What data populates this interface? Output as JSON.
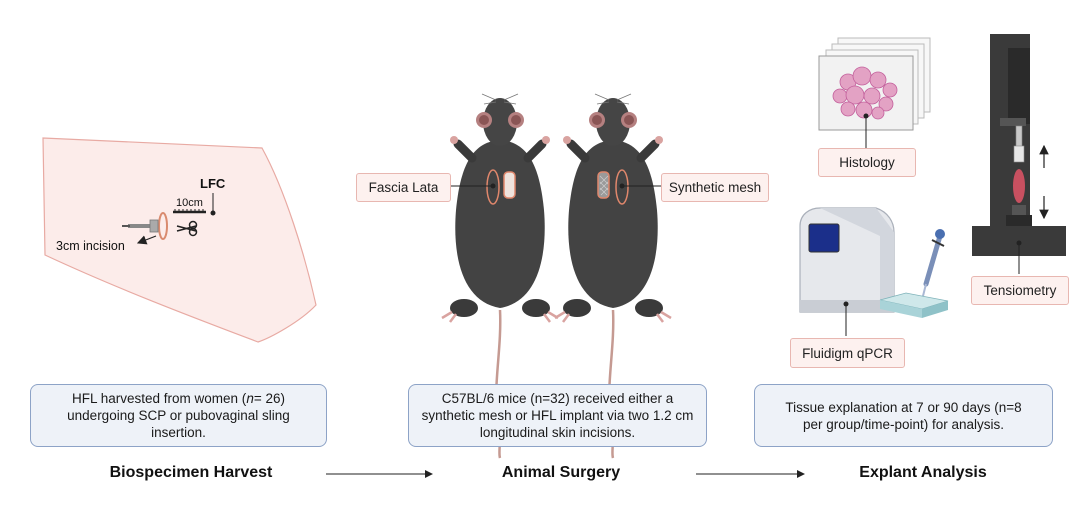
{
  "stages": [
    {
      "title": "Biospecimen Harvest",
      "description_pre": "HFL harvested from women (",
      "description_italic": "n",
      "description_post": "= 26) undergoing SCP or pubovaginal sling insertion."
    },
    {
      "title": "Animal Surgery",
      "description": "C57BL/6 mice (n=32) received either a synthetic mesh or HFL implant via two 1.2 cm longitudinal skin incisions."
    },
    {
      "title": "Explant Analysis",
      "description": "Tissue explanation at 7 or 90 days (n=8 per group/time-point) for analysis."
    }
  ],
  "harvest_labels": {
    "lfc": "LFC",
    "ruler": "10cm",
    "incision": "3cm incision"
  },
  "surgery_labels": {
    "left": "Fascia Lata",
    "right": "Synthetic mesh"
  },
  "analysis_labels": {
    "histology": "Histology",
    "qpcr": "Fluidigm qPCR",
    "tensiometry": "Tensiometry"
  },
  "colors": {
    "skin": "#fcecea",
    "skin_outline": "#e8aaa3",
    "mouse": "#3f3f3f",
    "box_fill": "#eef2f8",
    "box_border": "#8da3c7",
    "tag_fill": "#fdf1ef",
    "tag_border": "#e8b7b1"
  }
}
